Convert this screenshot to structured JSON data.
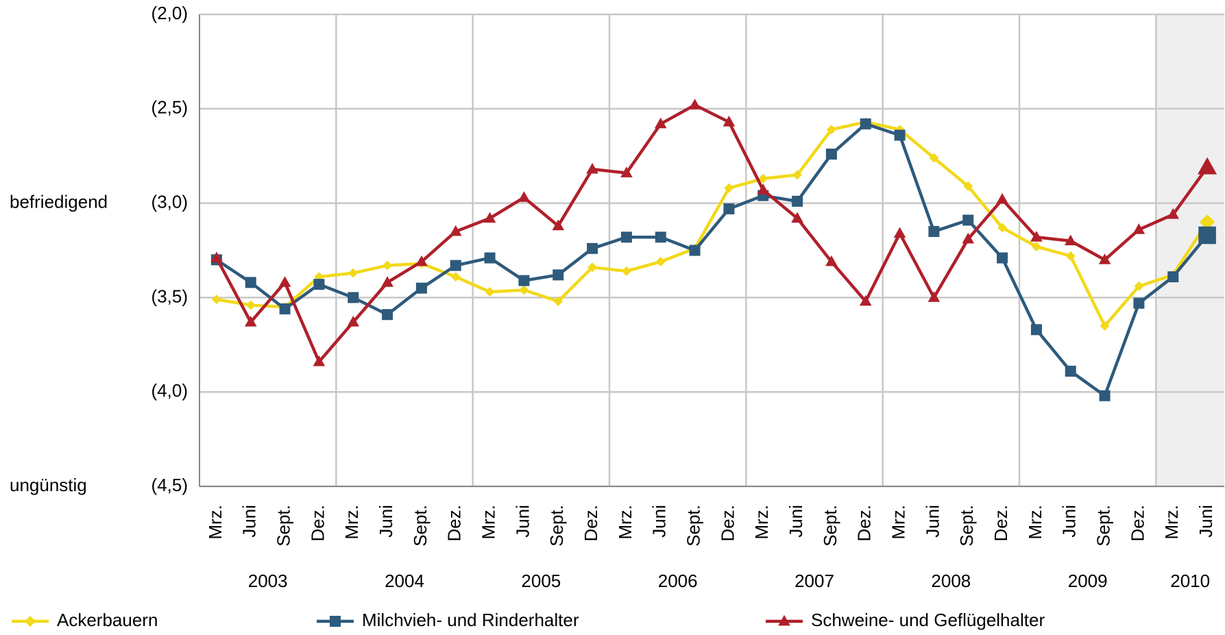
{
  "chart_data": {
    "type": "line",
    "categories": [
      "Mrz.",
      "Juni",
      "Sept.",
      "Dez.",
      "Mrz.",
      "Juni",
      "Sept.",
      "Dez.",
      "Mrz.",
      "Juni",
      "Sept.",
      "Dez.",
      "Mrz.",
      "Juni",
      "Sept.",
      "Dez.",
      "Mrz.",
      "Juni",
      "Sept.",
      "Dez.",
      "Mrz.",
      "Juni",
      "Sept.",
      "Dez.",
      "Mrz.",
      "Juni",
      "Sept.",
      "Dez.",
      "Mrz.",
      "Juni"
    ],
    "year_labels": [
      "2003",
      "2004",
      "2005",
      "2006",
      "2007",
      "2008",
      "2009",
      "2010"
    ],
    "ylim": [
      2.0,
      4.5
    ],
    "inverted": true,
    "yticks": [
      {
        "value": 2.0,
        "label": "(2,0)"
      },
      {
        "value": 2.5,
        "label": "(2,5)"
      },
      {
        "value": 3.0,
        "label": "(3,0)"
      },
      {
        "value": 3.5,
        "label": "(3,5)"
      },
      {
        "value": 4.0,
        "label": "(4,0)"
      },
      {
        "value": 4.5,
        "label": "(4,5)"
      }
    ],
    "annotations": [
      {
        "text": "befriedigend",
        "value": 3.0
      },
      {
        "text": "ungünstig",
        "value": 4.5
      }
    ],
    "grid": true,
    "series": [
      {
        "name": "Ackerbauern",
        "color": "#f2d91a",
        "marker": "diamond",
        "values": [
          3.51,
          3.54,
          3.55,
          3.39,
          3.37,
          3.33,
          3.32,
          3.39,
          3.47,
          3.46,
          3.52,
          3.34,
          3.36,
          3.31,
          3.24,
          2.92,
          2.87,
          2.85,
          2.61,
          2.57,
          2.61,
          2.76,
          2.91,
          3.13,
          3.23,
          3.28,
          3.65,
          3.44,
          3.38,
          3.1
        ]
      },
      {
        "name": "Milchvieh- und Rinderhalter",
        "color": "#2e5a7c",
        "marker": "square",
        "values": [
          3.3,
          3.42,
          3.56,
          3.43,
          3.5,
          3.59,
          3.45,
          3.33,
          3.29,
          3.41,
          3.38,
          3.24,
          3.18,
          3.18,
          3.25,
          3.03,
          2.96,
          2.99,
          2.74,
          2.58,
          2.64,
          3.15,
          3.09,
          3.29,
          3.67,
          3.89,
          4.02,
          3.53,
          3.39,
          3.17
        ]
      },
      {
        "name": "Schweine- und Geflügelhalter",
        "color": "#b0202a",
        "marker": "triangle",
        "values": [
          3.29,
          3.63,
          3.42,
          3.84,
          3.63,
          3.42,
          3.31,
          3.15,
          3.08,
          2.97,
          3.12,
          2.82,
          2.84,
          2.58,
          2.48,
          2.57,
          2.93,
          3.08,
          3.31,
          3.52,
          3.16,
          3.5,
          3.19,
          2.98,
          3.18,
          3.2,
          3.3,
          3.14,
          3.06,
          2.81
        ]
      }
    ]
  }
}
